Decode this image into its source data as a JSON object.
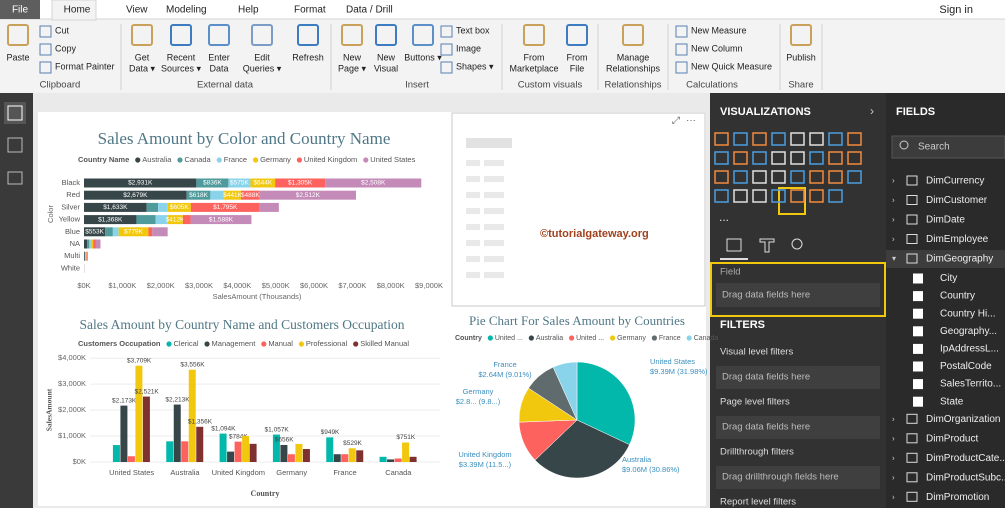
{
  "tabs": [
    "File",
    "Home",
    "View",
    "Modeling",
    "Help",
    "Format",
    "Data / Drill"
  ],
  "sign_in": "Sign in",
  "ribbon": {
    "groups": [
      {
        "name": "Clipboard",
        "buttons": [
          [
            "Paste"
          ]
        ],
        "small": [
          "Cut",
          "Copy",
          "Format Painter"
        ]
      },
      {
        "name": "External data",
        "buttons": [
          [
            "Get",
            "Data ▾"
          ],
          [
            "Recent",
            "Sources ▾"
          ],
          [
            "Enter",
            "Data"
          ],
          [
            "Edit",
            "Queries ▾"
          ],
          [
            "Refresh"
          ]
        ]
      },
      {
        "name": "Insert",
        "buttons": [
          [
            "New",
            "Page ▾"
          ],
          [
            "New",
            "Visual"
          ],
          [
            "Buttons ▾"
          ]
        ],
        "small": [
          "Text box",
          "Image",
          "Shapes ▾"
        ]
      },
      {
        "name": "Custom visuals",
        "buttons": [
          [
            "From",
            "Marketplace"
          ],
          [
            "From",
            "File"
          ]
        ]
      },
      {
        "name": "Relationships",
        "buttons": [
          [
            "Manage",
            "Relationships"
          ]
        ]
      },
      {
        "name": "Calculations",
        "small": [
          "New Measure",
          "New Column",
          "New Quick Measure"
        ]
      },
      {
        "name": "Share",
        "buttons": [
          [
            "Publish"
          ]
        ]
      }
    ]
  },
  "watermark": "©tutorialgateway.org",
  "visualizations": {
    "title": "VISUALIZATIONS",
    "field_label": "Field",
    "field_placeholder": "Drag data fields here"
  },
  "filters": {
    "title": "FILTERS",
    "items": [
      {
        "label": "Visual level filters",
        "placeholder": "Drag data fields here"
      },
      {
        "label": "Page level filters",
        "placeholder": "Drag data fields here"
      },
      {
        "label": "Drillthrough filters",
        "placeholder": "Drag drillthrough fields here"
      },
      {
        "label": "Report level filters"
      }
    ]
  },
  "fields": {
    "title": "FIELDS",
    "search": "Search",
    "tables": [
      {
        "name": "DimCurrency"
      },
      {
        "name": "DimCustomer"
      },
      {
        "name": "DimDate"
      },
      {
        "name": "DimEmployee"
      },
      {
        "name": "DimGeography",
        "columns": [
          "City",
          "Country",
          "Country Hi...",
          "Geography...",
          "IpAddressL...",
          "PostalCode",
          "SalesTerrito...",
          "State"
        ]
      },
      {
        "name": "DimOrganization"
      },
      {
        "name": "DimProduct"
      },
      {
        "name": "DimProductCate..."
      },
      {
        "name": "DimProductSubc..."
      },
      {
        "name": "DimPromotion"
      }
    ]
  },
  "chart_data": [
    {
      "type": "bar",
      "orientation": "horizontal",
      "stacked": true,
      "title": "Sales Amount by Color and Country Name",
      "legend_title": "Country Name",
      "x_label": "SalesAmount (Thousands)",
      "y_label": "Color",
      "categories": [
        "Black",
        "Red",
        "Silver",
        "Yellow",
        "Blue",
        "NA",
        "Multi",
        "White"
      ],
      "series": [
        {
          "name": "Australia",
          "color": "#374649",
          "values": [
            2931,
            2679,
            1633,
            1368,
            553,
            80,
            20,
            2
          ],
          "value_labels": [
            "$2,931K",
            "$2,679K",
            "$1,633K",
            "$1,368K",
            "$553K",
            null,
            null,
            null
          ]
        },
        {
          "name": "Canada",
          "color": "#4f9a9b",
          "values": [
            836,
            618,
            300,
            500,
            200,
            60,
            15,
            1
          ],
          "value_labels": [
            "$836K",
            "$618K",
            null,
            null,
            null,
            null,
            null,
            null
          ]
        },
        {
          "name": "France",
          "color": "#8ad4eb",
          "values": [
            575,
            357,
            250,
            300,
            150,
            40,
            10,
            1
          ],
          "value_labels": [
            "$575K",
            null,
            null,
            null,
            null,
            null,
            null,
            null
          ]
        },
        {
          "name": "Germany",
          "color": "#f2c80f",
          "values": [
            644,
            441,
            605,
            412,
            779,
            60,
            15,
            1
          ],
          "value_labels": [
            "$644K",
            "$441K",
            "$605K",
            "$412K",
            "$779K",
            null,
            null,
            null
          ]
        },
        {
          "name": "United Kingdom",
          "color": "#fd625e",
          "values": [
            1305,
            488,
            1795,
            200,
            100,
            60,
            15,
            1
          ],
          "value_labels": [
            "$1,305K",
            "$488K",
            "$1,795K",
            null,
            null,
            null,
            null,
            null
          ]
        },
        {
          "name": "United States",
          "color": "#c48bb8",
          "values": [
            2508,
            2512,
            500,
            1588,
            400,
            130,
            25,
            4
          ],
          "value_labels": [
            "$2,508K",
            "$2,512K",
            null,
            "$1,588K",
            null,
            null,
            null,
            null
          ]
        }
      ],
      "xlim": [
        0,
        9000
      ],
      "xticks": [
        {
          "value": 0,
          "label": "$0K"
        },
        {
          "value": 1000,
          "label": "$1,000K"
        },
        {
          "value": 2000,
          "label": "$2,000K"
        },
        {
          "value": 3000,
          "label": "$3,000K"
        },
        {
          "value": 4000,
          "label": "$4,000K"
        },
        {
          "value": 5000,
          "label": "$5,000K"
        },
        {
          "value": 6000,
          "label": "$6,000K"
        },
        {
          "value": 7000,
          "label": "$7,000K"
        },
        {
          "value": 8000,
          "label": "$8,000K"
        },
        {
          "value": 9000,
          "label": "$9,000K"
        }
      ],
      "grid": false
    },
    {
      "type": "bar",
      "orientation": "vertical",
      "stacked": false,
      "title": "Sales Amount by Country Name and Customers Occupation",
      "legend_title": "Customers Occupation",
      "x_label": "Country",
      "y_label": "SalesAmount",
      "categories": [
        "United States",
        "Australia",
        "United Kingdom",
        "Germany",
        "France",
        "Canada"
      ],
      "series": [
        {
          "name": "Clerical",
          "color": "#01b8aa",
          "values": [
            653,
            797,
            1094,
            1057,
            949,
            200
          ],
          "value_labels": [
            null,
            null,
            "$1,094K",
            "$1,057K",
            "$949K",
            null
          ]
        },
        {
          "name": "Management",
          "color": "#374649",
          "values": [
            2173,
            2213,
            400,
            656,
            300,
            100
          ],
          "value_labels": [
            "$2,173K",
            "$2,213K",
            null,
            "$656K",
            null,
            null
          ]
        },
        {
          "name": "Manual",
          "color": "#fd625e",
          "values": [
            222,
            797,
            784,
            300,
            300,
            137
          ],
          "value_labels": [
            null,
            null,
            "$784K",
            null,
            null,
            null
          ]
        },
        {
          "name": "Professional",
          "color": "#f2c80f",
          "values": [
            3709,
            3556,
            1000,
            696,
            529,
            751
          ],
          "value_labels": [
            "$3,709K",
            "$3,556K",
            null,
            null,
            "$529K",
            "$751K"
          ]
        },
        {
          "name": "Skilled Manual",
          "color": "#7f312f",
          "values": [
            2521,
            1356,
            700,
            500,
            450,
            200
          ],
          "value_labels": [
            "$2,521K",
            "$1,356K",
            null,
            null,
            null,
            null
          ]
        }
      ],
      "ylim": [
        0,
        4200
      ],
      "yticks": [
        {
          "value": 0,
          "label": "$0K"
        },
        {
          "value": 1000,
          "label": "$1,000K"
        },
        {
          "value": 2000,
          "label": "$2,000K"
        },
        {
          "value": 3000,
          "label": "$3,000K"
        },
        {
          "value": 4000,
          "label": "$4,000K"
        }
      ],
      "grid": true
    },
    {
      "type": "pie",
      "title": "Pie Chart For Sales Amount by Countries",
      "legend_title": "Country",
      "categories": [
        "United States",
        "Australia",
        "United Kingdom",
        "Germany",
        "France",
        "Canada"
      ],
      "legend_labels": [
        "United ...",
        null,
        "United ...",
        null,
        null,
        null
      ],
      "values": [
        9.39,
        9.06,
        3.39,
        2.89,
        2.64,
        1.98
      ],
      "value_labels": [
        "$9.39M (31.98%)",
        "$9.06M (30.86%)",
        "$3.39M (11.5...)",
        "$2.8... (9.8...)",
        "$2.64M (9.01%)",
        null
      ],
      "colors": [
        "#01b8aa",
        "#374649",
        "#fd625e",
        "#f2c80f",
        "#5f6b6d",
        "#8ad4eb"
      ]
    }
  ]
}
